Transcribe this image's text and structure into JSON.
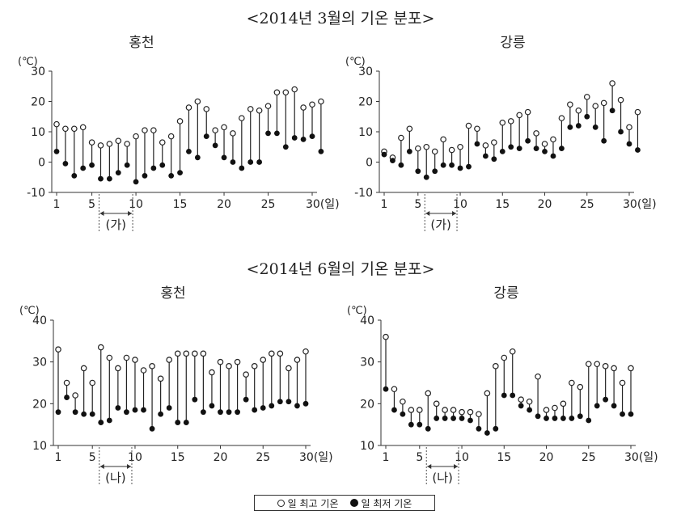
{
  "sections": {
    "march_title": "<2014년 3월의 기온 분포>",
    "june_title": "<2014년 6월의 기온 분포>"
  },
  "legend": {
    "max_label": "일 최고 기온",
    "min_label": "일 최저 기온"
  },
  "colors": {
    "line": "#222222",
    "marker_fill": "#111111",
    "axis": "#333333"
  },
  "chart_data": [
    {
      "type": "range-dot",
      "title": "홍천",
      "unit_label": "(℃)",
      "ylim": [
        -10,
        30
      ],
      "yticks": [
        -10,
        0,
        10,
        20,
        30
      ],
      "x_ticks": [
        "1",
        "5",
        "10",
        "15",
        "20",
        "25",
        "30(일)"
      ],
      "period_label": "(가)",
      "period_range": [
        6,
        10
      ],
      "series": [
        {
          "name": "일 최고 기온",
          "values": [
            12.5,
            11,
            11,
            11.5,
            6.5,
            5.5,
            6,
            7,
            6,
            8.5,
            10.5,
            10.5,
            6.5,
            8.5,
            13.5,
            18,
            20,
            17.5,
            10.5,
            11.5,
            9.5,
            14.5,
            17.5,
            17,
            18.5,
            23,
            23,
            24,
            18,
            19,
            20
          ]
        },
        {
          "name": "일 최저 기온",
          "values": [
            3.5,
            -0.5,
            -4.5,
            -2,
            -1,
            -5.5,
            -5.5,
            -3.5,
            -1,
            -6.5,
            -4.5,
            -2,
            -1,
            -4.5,
            -3.5,
            3.5,
            1.5,
            8.5,
            5.5,
            1.5,
            0,
            -2,
            0,
            0,
            9.5,
            9.5,
            5,
            8,
            7.5,
            8.5,
            3.5
          ]
        }
      ]
    },
    {
      "type": "range-dot",
      "title": "강릉",
      "unit_label": "(℃)",
      "ylim": [
        -10,
        30
      ],
      "yticks": [
        -10,
        0,
        10,
        20,
        30
      ],
      "x_ticks": [
        "1",
        "5",
        "10",
        "15",
        "20",
        "25",
        "30(일)"
      ],
      "period_label": "(가)",
      "period_range": [
        6,
        10
      ],
      "series": [
        {
          "name": "일 최고 기온",
          "values": [
            3.5,
            1.5,
            8,
            11,
            4.5,
            5,
            3.5,
            7.5,
            4,
            5,
            12,
            11,
            5.5,
            6.5,
            13,
            13.5,
            15.5,
            16.5,
            9.5,
            6,
            7.5,
            14.5,
            19,
            17,
            21.5,
            18.5,
            19.5,
            26,
            20.5,
            11.5,
            16.5
          ]
        },
        {
          "name": "일 최저 기온",
          "values": [
            2.5,
            0.5,
            -1,
            3.5,
            -3,
            -5,
            -3,
            -1,
            -1,
            -2,
            -1.5,
            6,
            2,
            1,
            3.5,
            5,
            4.5,
            7,
            4.5,
            3.5,
            2,
            4.5,
            11.5,
            12,
            15,
            11.5,
            7,
            17,
            10,
            6,
            4
          ]
        }
      ]
    },
    {
      "type": "range-dot",
      "title": "홍천",
      "unit_label": "(℃)",
      "ylim": [
        10,
        40
      ],
      "yticks": [
        10,
        20,
        30,
        40
      ],
      "x_ticks": [
        "1",
        "5",
        "10",
        "15",
        "20",
        "25",
        "30(일)"
      ],
      "period_label": "(나)",
      "period_range": [
        6,
        10
      ],
      "series": [
        {
          "name": "일 최고 기온",
          "values": [
            33,
            25,
            22,
            28.5,
            25,
            33.5,
            31,
            28.5,
            31,
            30.5,
            28,
            29,
            26,
            30.5,
            32,
            32,
            32,
            32,
            27.5,
            30,
            29,
            30,
            27,
            29,
            30.5,
            32,
            32,
            28.5,
            30.5,
            32.5
          ]
        },
        {
          "name": "일 최저 기온",
          "values": [
            18,
            21.5,
            18,
            17.5,
            17.5,
            15.5,
            16,
            19,
            18,
            18.5,
            18.5,
            14,
            17.5,
            19,
            15.5,
            15.5,
            21,
            18,
            19.5,
            18,
            18,
            18,
            21,
            18.5,
            19,
            19.5,
            20.5,
            20.5,
            19.5,
            20
          ]
        }
      ]
    },
    {
      "type": "range-dot",
      "title": "강릉",
      "unit_label": "(℃)",
      "ylim": [
        10,
        40
      ],
      "yticks": [
        10,
        20,
        30,
        40
      ],
      "x_ticks": [
        "1",
        "5",
        "10",
        "15",
        "20",
        "25",
        "30(일)"
      ],
      "period_label": "(나)",
      "period_range": [
        6,
        10
      ],
      "series": [
        {
          "name": "일 최고 기온",
          "values": [
            36,
            23.5,
            20.5,
            18.5,
            18.5,
            22.5,
            20,
            18.5,
            18.5,
            18,
            18,
            17.5,
            22.5,
            29,
            31,
            32.5,
            21,
            20.5,
            26.5,
            18.5,
            19,
            20,
            25,
            24,
            29.5,
            29.5,
            29,
            28.5,
            25,
            28.5
          ]
        },
        {
          "name": "일 최저 기온",
          "values": [
            23.5,
            18.5,
            17.5,
            15,
            15,
            14,
            16.5,
            16.5,
            16.5,
            16.5,
            16,
            14,
            13,
            14,
            22,
            22,
            19.5,
            18.5,
            17,
            16.5,
            16.5,
            16.5,
            16.5,
            17,
            16,
            19.5,
            21,
            19.5,
            17.5,
            17.5
          ]
        }
      ]
    }
  ]
}
